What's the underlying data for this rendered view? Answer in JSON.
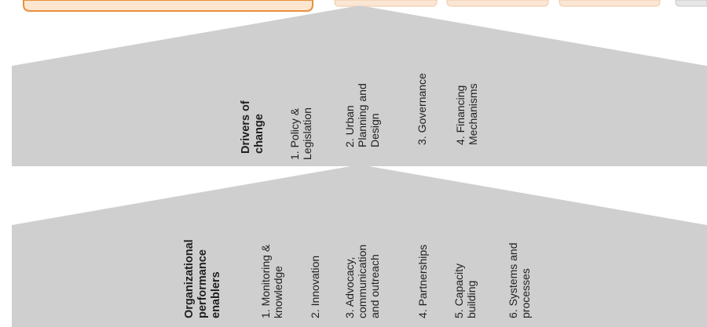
{
  "colors": {
    "chevron_fill": "#cfcfcf",
    "top_bar_outline": "#e8903c",
    "top_tab_fill": "#fbe6d4",
    "text": "#1f1f1f"
  },
  "drivers": {
    "heading": [
      "Drivers of",
      "change"
    ],
    "items": [
      [
        "1. Policy &",
        "Legislation"
      ],
      [
        "2. Urban",
        "Planning and",
        "Design"
      ],
      [
        "3. Governance"
      ],
      [
        "4. Financing",
        "Mechanisms"
      ]
    ]
  },
  "enablers": {
    "heading": [
      "Organizational",
      "performance",
      "enablers"
    ],
    "items": [
      [
        "1. Monitoring &",
        "knowledge"
      ],
      [
        "2. Innovation"
      ],
      [
        "3. Advocacy,",
        "communication",
        "and outreach"
      ],
      [
        "4. Partnerships"
      ],
      [
        "5. Capacity",
        "building"
      ],
      [
        "6. Systems and",
        "processes"
      ]
    ]
  }
}
